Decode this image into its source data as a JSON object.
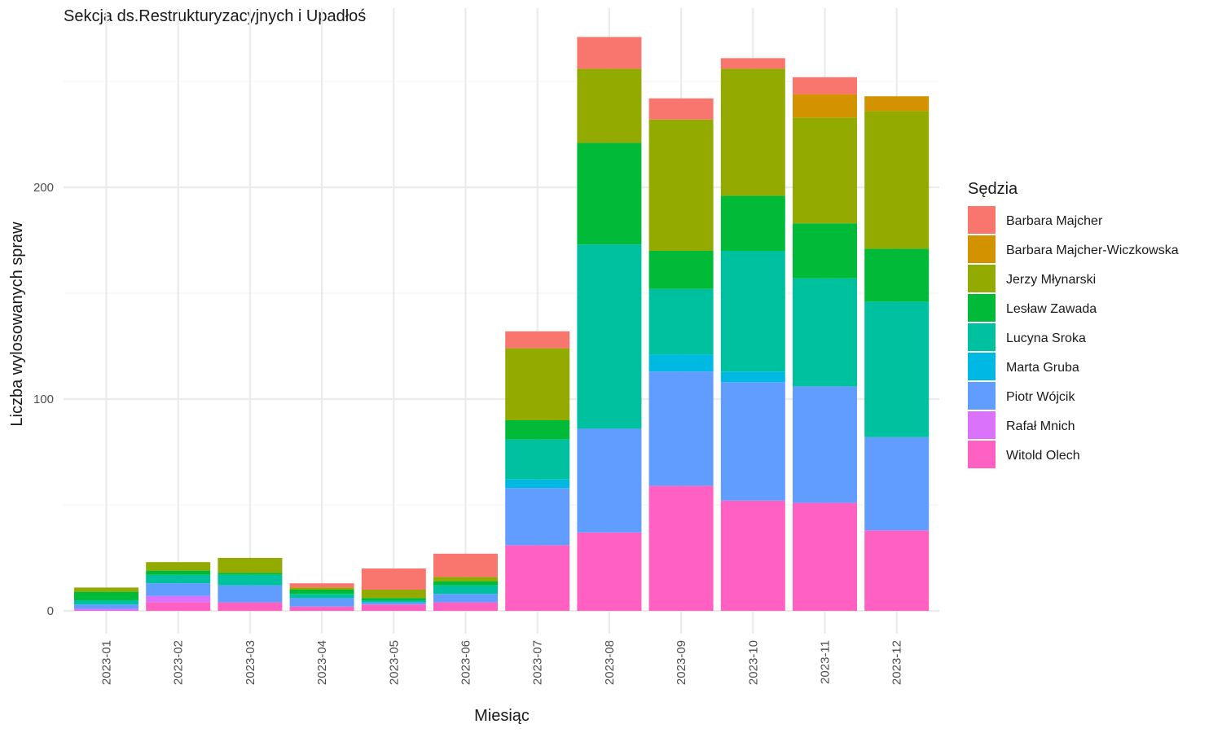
{
  "chart_data": {
    "type": "bar",
    "stacked": true,
    "title": "Sekcja ds.Restrukturyzacyjnych i Upadłoś",
    "xlabel": "Miesiąc",
    "ylabel": "Liczba wylosowanych spraw",
    "ylim": [
      0,
      270
    ],
    "yticks": [
      0,
      100,
      200
    ],
    "grid": true,
    "legend_title": "Sędzia",
    "legend_position": "right",
    "categories": [
      "2023-01",
      "2023-02",
      "2023-03",
      "2023-04",
      "2023-05",
      "2023-06",
      "2023-07",
      "2023-08",
      "2023-09",
      "2023-10",
      "2023-11",
      "2023-12"
    ],
    "series": [
      {
        "name": "Barbara Majcher",
        "color": "#F8766D",
        "values": [
          0,
          0,
          0,
          2,
          10,
          11,
          8,
          15,
          10,
          5,
          8,
          0
        ]
      },
      {
        "name": "Barbara Majcher-Wiczkowska",
        "color": "#D39200",
        "values": [
          0,
          0,
          0,
          0,
          0,
          0,
          0,
          0,
          0,
          0,
          11,
          7
        ]
      },
      {
        "name": "Jerzy Młynarski",
        "color": "#93AA00",
        "values": [
          2,
          4,
          7,
          1,
          4,
          2,
          34,
          35,
          62,
          60,
          50,
          65
        ]
      },
      {
        "name": "Lesław Zawada",
        "color": "#00BA38",
        "values": [
          4,
          2,
          1,
          2,
          1,
          2,
          9,
          48,
          18,
          26,
          26,
          25
        ]
      },
      {
        "name": "Lucyna Sroka",
        "color": "#00C19F",
        "values": [
          2,
          4,
          5,
          2,
          1,
          4,
          19,
          87,
          31,
          57,
          51,
          64
        ]
      },
      {
        "name": "Marta Gruba",
        "color": "#00B9E3",
        "values": [
          0,
          0,
          0,
          0,
          0,
          0,
          4,
          0,
          8,
          5,
          0,
          0
        ]
      },
      {
        "name": "Piotr Wójcik",
        "color": "#619CFF",
        "values": [
          2,
          6,
          8,
          4,
          1,
          4,
          27,
          49,
          54,
          56,
          55,
          44
        ]
      },
      {
        "name": "Rafał Mnich",
        "color": "#DB72FB",
        "values": [
          1,
          3,
          0,
          0,
          0,
          0,
          0,
          0,
          0,
          0,
          0,
          0
        ]
      },
      {
        "name": "Witold Olech",
        "color": "#FF61C3",
        "values": [
          0,
          4,
          4,
          2,
          3,
          4,
          31,
          37,
          59,
          52,
          51,
          38
        ]
      }
    ]
  }
}
